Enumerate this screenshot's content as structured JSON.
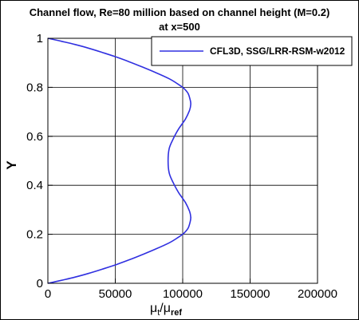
{
  "chart_data": {
    "type": "line",
    "title": "Channel flow, Re=80 million based on channel height (M=0.2)",
    "subtitle": "at x=500",
    "ylabel": "Y",
    "xlabel": {
      "main": "μ",
      "sub1": "t",
      "slash": "/μ",
      "sub2": "ref"
    },
    "xlim": [
      0,
      200000
    ],
    "ylim": [
      0,
      1
    ],
    "xticks": [
      0,
      50000,
      100000,
      150000,
      200000
    ],
    "xtick_labels": [
      "0",
      "50000",
      "100000",
      "150000",
      "200000"
    ],
    "yticks": [
      0,
      0.2,
      0.4,
      0.6,
      0.8,
      1
    ],
    "ytick_labels": [
      "0",
      "0.2",
      "0.4",
      "0.6",
      "0.8",
      "1"
    ],
    "grid": true,
    "legend_placement": "top-right",
    "series_color": "#3030e0",
    "series": [
      {
        "name": "CFL3D, SSG/LRR-RSM-w2012",
        "x": [
          0,
          10000,
          20000,
          30000,
          40000,
          50000,
          60000,
          70000,
          80000,
          90000,
          96000,
          101000,
          104000,
          105500,
          106000,
          105000,
          102000,
          97000,
          93000,
          90000,
          89200,
          90000,
          93000,
          97000,
          102000,
          105000,
          106000,
          105500,
          104000,
          101000,
          96000,
          90000,
          80000,
          70000,
          60000,
          50000,
          40000,
          30000,
          20000,
          10000,
          0
        ],
        "y": [
          0,
          0.012,
          0.025,
          0.04,
          0.057,
          0.075,
          0.095,
          0.117,
          0.14,
          0.165,
          0.185,
          0.205,
          0.225,
          0.25,
          0.27,
          0.295,
          0.33,
          0.37,
          0.41,
          0.45,
          0.5,
          0.55,
          0.59,
          0.63,
          0.67,
          0.705,
          0.73,
          0.75,
          0.775,
          0.795,
          0.815,
          0.835,
          0.86,
          0.883,
          0.905,
          0.925,
          0.943,
          0.96,
          0.975,
          0.988,
          1
        ]
      }
    ]
  }
}
